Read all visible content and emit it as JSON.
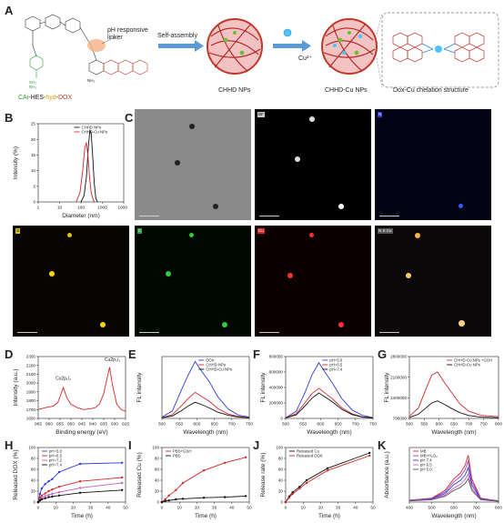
{
  "panels": {
    "A": "A",
    "B": "B",
    "C": "C",
    "D": "D",
    "E": "E",
    "F": "F",
    "G": "G",
    "H": "H",
    "I": "I",
    "J": "J",
    "K": "K"
  },
  "panelA": {
    "linker_label": "pH responsive\nlinker",
    "molecule_label": {
      "cai": "CAi",
      "sep1": "-HES-",
      "hyd": "hyd",
      "sep2": "-",
      "dox": "DOX"
    },
    "step1": "Self-assembly",
    "cu_label": "Cu²⁺",
    "np1": "CHHD NPs",
    "np2": "CHHD-Cu NPs",
    "chelation_title": "Dox-Cu chelation structure",
    "so2nh2": "SO₂\nNH₂",
    "nh2": "NH₂"
  },
  "panelC": {
    "tags": [
      "BF",
      "N",
      "S",
      "Cu",
      "N S Cu"
    ]
  },
  "chart_data": [
    {
      "id": "B",
      "type": "line",
      "xlabel": "Diameter (nm)",
      "ylabel": "Intensity (%)",
      "xscale": "log",
      "xlim": [
        1,
        10000
      ],
      "ylim": [
        0,
        25
      ],
      "xticks": [
        "1",
        "10",
        "100",
        "1000",
        "10000"
      ],
      "yticks": [
        "0",
        "5",
        "10",
        "15",
        "20",
        "25"
      ],
      "legend": "top-right",
      "series": [
        {
          "name": "CHHD NPs",
          "color": "#111111",
          "x": [
            100,
            140,
            180,
            220,
            260,
            300,
            350,
            420,
            500,
            600
          ],
          "y": [
            0,
            2,
            8,
            17,
            23,
            22,
            15,
            6,
            1,
            0
          ]
        },
        {
          "name": "CHHD-Cu NPs",
          "color": "#d62728",
          "x": [
            60,
            90,
            120,
            150,
            180,
            210,
            250,
            300,
            360,
            420
          ],
          "y": [
            0,
            3,
            10,
            17,
            19,
            15,
            8,
            3,
            1,
            0
          ]
        }
      ]
    },
    {
      "id": "D",
      "type": "line",
      "xlabel": "Binding energy (eV)",
      "ylabel": "Intensity (a.u.)",
      "xlim": [
        965,
        925
      ],
      "ylim": [
        1600,
        2300
      ],
      "xticks": [
        "965",
        "960",
        "955",
        "950",
        "945",
        "940",
        "935",
        "930",
        "925"
      ],
      "yticks": [
        "1600",
        "1700",
        "1800",
        "1900",
        "2000",
        "2100",
        "2200",
        "2300"
      ],
      "annotations": [
        "Cu2p₁/₂",
        "Cu2p₃/₂"
      ],
      "series": [
        {
          "name": "",
          "color": "#d62728",
          "x": [
            965,
            962,
            958,
            956,
            953.5,
            952,
            950,
            947,
            944,
            941,
            939,
            937,
            935,
            933.5,
            932.3,
            931,
            929,
            927,
            925
          ],
          "y": [
            1700,
            1720,
            1740,
            1780,
            1950,
            1840,
            1760,
            1720,
            1700,
            1710,
            1720,
            1760,
            1880,
            2050,
            2180,
            1980,
            1760,
            1700,
            1680
          ]
        }
      ]
    },
    {
      "id": "E",
      "type": "line",
      "xlabel": "Wavelength (nm)",
      "ylabel": "FL intensity",
      "xlim": [
        500,
        750
      ],
      "ylim": [
        0,
        1
      ],
      "xticks": [
        "500",
        "550",
        "600",
        "650",
        "700",
        "750"
      ],
      "legend": "top-right",
      "series": [
        {
          "name": "DOX",
          "color": "#2b3bd8",
          "x": [
            500,
            530,
            555,
            575,
            595,
            615,
            635,
            660,
            690,
            720,
            750
          ],
          "y": [
            0.02,
            0.12,
            0.45,
            0.7,
            0.92,
            0.75,
            0.6,
            0.35,
            0.15,
            0.05,
            0.02
          ]
        },
        {
          "name": "CHHD NPs",
          "color": "#d62728",
          "x": [
            500,
            530,
            555,
            575,
            595,
            615,
            635,
            660,
            690,
            720,
            750
          ],
          "y": [
            0.01,
            0.06,
            0.2,
            0.32,
            0.42,
            0.35,
            0.28,
            0.16,
            0.07,
            0.03,
            0.01
          ]
        },
        {
          "name": "CHHD-Cu NPs",
          "color": "#111111",
          "x": [
            500,
            530,
            555,
            575,
            595,
            615,
            635,
            660,
            690,
            720,
            750
          ],
          "y": [
            0.01,
            0.04,
            0.12,
            0.2,
            0.26,
            0.22,
            0.17,
            0.1,
            0.05,
            0.02,
            0.01
          ]
        }
      ]
    },
    {
      "id": "F",
      "type": "line",
      "xlabel": "Wavelength (nm)",
      "ylabel": "FL intensity",
      "xlim": [
        500,
        750
      ],
      "ylim": [
        0,
        800000
      ],
      "xticks": [
        "500",
        "550",
        "600",
        "650",
        "700",
        "750"
      ],
      "yticks": [
        "0",
        "200000",
        "400000",
        "600000",
        "800000"
      ],
      "legend": "top-right",
      "series": [
        {
          "name": "pH=5.0",
          "color": "#2b3bd8",
          "x": [
            500,
            530,
            555,
            575,
            595,
            615,
            635,
            660,
            690,
            720,
            750
          ],
          "y": [
            10000,
            90000,
            330000,
            560000,
            720000,
            580000,
            450000,
            260000,
            110000,
            40000,
            10000
          ]
        },
        {
          "name": "pH=6.5",
          "color": "#d62728",
          "x": [
            500,
            530,
            555,
            575,
            595,
            615,
            635,
            660,
            690,
            720,
            750
          ],
          "y": [
            8000,
            60000,
            200000,
            320000,
            390000,
            320000,
            250000,
            140000,
            60000,
            20000,
            8000
          ]
        },
        {
          "name": "pH=7.4",
          "color": "#111111",
          "x": [
            500,
            530,
            555,
            575,
            595,
            615,
            635,
            660,
            690,
            720,
            750
          ],
          "y": [
            6000,
            45000,
            160000,
            260000,
            330000,
            270000,
            210000,
            120000,
            50000,
            18000,
            6000
          ]
        }
      ]
    },
    {
      "id": "G",
      "type": "line",
      "xlabel": "Wavelength (nm)",
      "ylabel": "FL intensity",
      "xlim": [
        500,
        800
      ],
      "ylim": [
        0,
        3000000
      ],
      "xticks": [
        "500",
        "550",
        "600",
        "650",
        "700",
        "750",
        "800"
      ],
      "yticks": [
        "700000",
        "1400000",
        "2100000",
        "2800000"
      ],
      "legend": "top-right",
      "series": [
        {
          "name": "CHHD-Cu NPs +GSH",
          "color": "#d62728",
          "x": [
            500,
            530,
            555,
            575,
            595,
            615,
            640,
            670,
            700,
            740,
            800
          ],
          "y": [
            100000,
            500000,
            1400000,
            2100000,
            2250000,
            1800000,
            1300000,
            700000,
            350000,
            150000,
            80000
          ]
        },
        {
          "name": "CHHD-Cu NPs",
          "color": "#111111",
          "x": [
            500,
            530,
            555,
            575,
            595,
            615,
            640,
            670,
            700,
            740,
            800
          ],
          "y": [
            50000,
            200000,
            500000,
            750000,
            850000,
            700000,
            500000,
            280000,
            140000,
            60000,
            30000
          ]
        }
      ]
    },
    {
      "id": "H",
      "type": "line",
      "xlabel": "Time (h)",
      "ylabel": "Released DOX (%)",
      "xlim": [
        0,
        50
      ],
      "ylim": [
        0,
        100
      ],
      "xticks": [
        "0",
        "10",
        "20",
        "30",
        "40",
        "50"
      ],
      "yticks": [
        "0",
        "20",
        "40",
        "60",
        "80",
        "100"
      ],
      "legend": "top-left",
      "series": [
        {
          "name": "pH=5.0",
          "color": "#2b3bd8",
          "x": [
            0,
            1,
            2,
            4,
            6,
            8,
            12,
            24,
            48
          ],
          "y": [
            0,
            15,
            25,
            33,
            38,
            42,
            55,
            70,
            72
          ]
        },
        {
          "name": "pH=6.5",
          "color": "#d62728",
          "x": [
            0,
            1,
            2,
            4,
            6,
            8,
            12,
            24,
            48
          ],
          "y": [
            0,
            8,
            12,
            16,
            20,
            23,
            28,
            38,
            45
          ]
        },
        {
          "name": "pH=7.2",
          "color": "#c060c0",
          "x": [
            0,
            1,
            2,
            4,
            6,
            8,
            12,
            24,
            48
          ],
          "y": [
            0,
            5,
            8,
            11,
            13,
            15,
            18,
            26,
            35
          ]
        },
        {
          "name": "pH=7.4",
          "color": "#111111",
          "x": [
            0,
            1,
            2,
            4,
            6,
            8,
            12,
            24,
            48
          ],
          "y": [
            0,
            3,
            5,
            7,
            9,
            10,
            12,
            17,
            22
          ]
        }
      ]
    },
    {
      "id": "I",
      "type": "line",
      "xlabel": "Time (h)",
      "ylabel": "Released Cu (%)",
      "xlim": [
        0,
        50
      ],
      "ylim": [
        0,
        100
      ],
      "xticks": [
        "0",
        "10",
        "20",
        "30",
        "40",
        "50"
      ],
      "yticks": [
        "0",
        "20",
        "40",
        "60",
        "80",
        "100"
      ],
      "legend": "top-left",
      "series": [
        {
          "name": "PBS+GSH",
          "color": "#d62728",
          "x": [
            0,
            2,
            4,
            8,
            12,
            24,
            36,
            48
          ],
          "y": [
            0,
            5,
            12,
            22,
            35,
            58,
            72,
            82
          ]
        },
        {
          "name": "PBS",
          "color": "#111111",
          "x": [
            0,
            2,
            4,
            8,
            12,
            24,
            36,
            48
          ],
          "y": [
            0,
            2,
            3,
            5,
            6,
            8,
            9,
            11
          ]
        }
      ]
    },
    {
      "id": "J",
      "type": "line",
      "xlabel": "Time (h)",
      "ylabel": "Release rate (%)",
      "xlim": [
        0,
        50
      ],
      "ylim": [
        0,
        100
      ],
      "xticks": [
        "0",
        "10",
        "20",
        "30",
        "40",
        "50"
      ],
      "yticks": [
        "0",
        "20",
        "40",
        "60",
        "80",
        "100"
      ],
      "legend": "top-left",
      "series": [
        {
          "name": "Released Cu",
          "color": "#111111",
          "x": [
            0,
            2,
            4,
            8,
            12,
            24,
            48
          ],
          "y": [
            0,
            10,
            18,
            28,
            40,
            62,
            90
          ]
        },
        {
          "name": "Released DOX",
          "color": "#d62728",
          "x": [
            0,
            2,
            4,
            8,
            12,
            24,
            48
          ],
          "y": [
            0,
            8,
            15,
            25,
            35,
            58,
            85
          ]
        }
      ]
    },
    {
      "id": "K",
      "type": "line",
      "xlabel": "Wavelength (nm)",
      "ylabel": "Absorbance (a.u.)",
      "xlim": [
        400,
        800
      ],
      "ylim": [
        0,
        1.4
      ],
      "xticks": [
        "400",
        "500",
        "600",
        "700",
        "800"
      ],
      "legend": "top-left",
      "series": [
        {
          "name": "MB",
          "color": "#d62728",
          "x": [
            400,
            500,
            560,
            600,
            630,
            650,
            664,
            680,
            720,
            800
          ],
          "y": [
            0.05,
            0.1,
            0.3,
            0.6,
            0.75,
            0.95,
            1.2,
            0.6,
            0.1,
            0.03
          ]
        },
        {
          "name": "MB+H₂O₂",
          "color": "#9b3bd0",
          "x": [
            400,
            500,
            560,
            600,
            630,
            650,
            664,
            680,
            720,
            800
          ],
          "y": [
            0.05,
            0.09,
            0.26,
            0.52,
            0.66,
            0.83,
            1.05,
            0.52,
            0.09,
            0.03
          ]
        },
        {
          "name": "pH 7.4",
          "color": "#2b3bd8",
          "x": [
            400,
            500,
            560,
            600,
            630,
            650,
            664,
            680,
            720,
            800
          ],
          "y": [
            0.04,
            0.08,
            0.22,
            0.45,
            0.56,
            0.7,
            0.88,
            0.44,
            0.08,
            0.02
          ]
        },
        {
          "name": "pH 6.5",
          "color": "#c060c0",
          "x": [
            400,
            500,
            560,
            600,
            630,
            650,
            664,
            680,
            720,
            800
          ],
          "y": [
            0.04,
            0.07,
            0.18,
            0.36,
            0.46,
            0.58,
            0.72,
            0.36,
            0.07,
            0.02
          ]
        },
        {
          "name": "pH 5.0",
          "color": "#555555",
          "x": [
            400,
            500,
            560,
            600,
            630,
            650,
            664,
            680,
            720,
            800
          ],
          "y": [
            0.03,
            0.06,
            0.15,
            0.3,
            0.38,
            0.48,
            0.6,
            0.3,
            0.06,
            0.02
          ]
        }
      ]
    }
  ]
}
